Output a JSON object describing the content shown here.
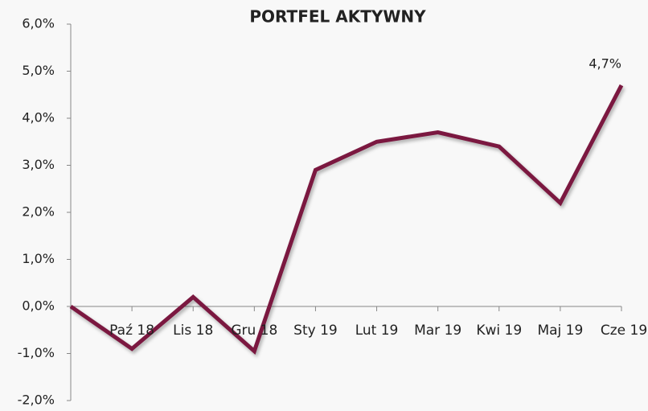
{
  "chart_data": {
    "type": "line",
    "title": "PORTFEL AKTYWNY",
    "categories": [
      null,
      "Paź 18",
      "Lis 18",
      "Gru 18",
      "Sty 19",
      "Lut 19",
      "Mar 19",
      "Kwi 19",
      "Maj 19",
      "Cze 19"
    ],
    "values": [
      0,
      -0.9,
      0.2,
      -0.95,
      2.9,
      3.5,
      3.7,
      3.4,
      2.2,
      4.7
    ],
    "value_labels": [
      null,
      null,
      null,
      null,
      null,
      null,
      null,
      null,
      null,
      "4,7%"
    ],
    "color": "#7b1840",
    "ylim": [
      -2,
      6
    ],
    "yticks": [
      {
        "value": -2,
        "label": "-2,0%"
      },
      {
        "value": -1,
        "label": "-1,0%"
      },
      {
        "value": 0,
        "label": "0,0%"
      },
      {
        "value": 1,
        "label": "1,0%"
      },
      {
        "value": 2,
        "label": "2,0%"
      },
      {
        "value": 3,
        "label": "3,0%"
      },
      {
        "value": 4,
        "label": "4,0%"
      },
      {
        "value": 5,
        "label": "5,0%"
      },
      {
        "value": 6,
        "label": "6,0%"
      }
    ],
    "grid": false
  }
}
